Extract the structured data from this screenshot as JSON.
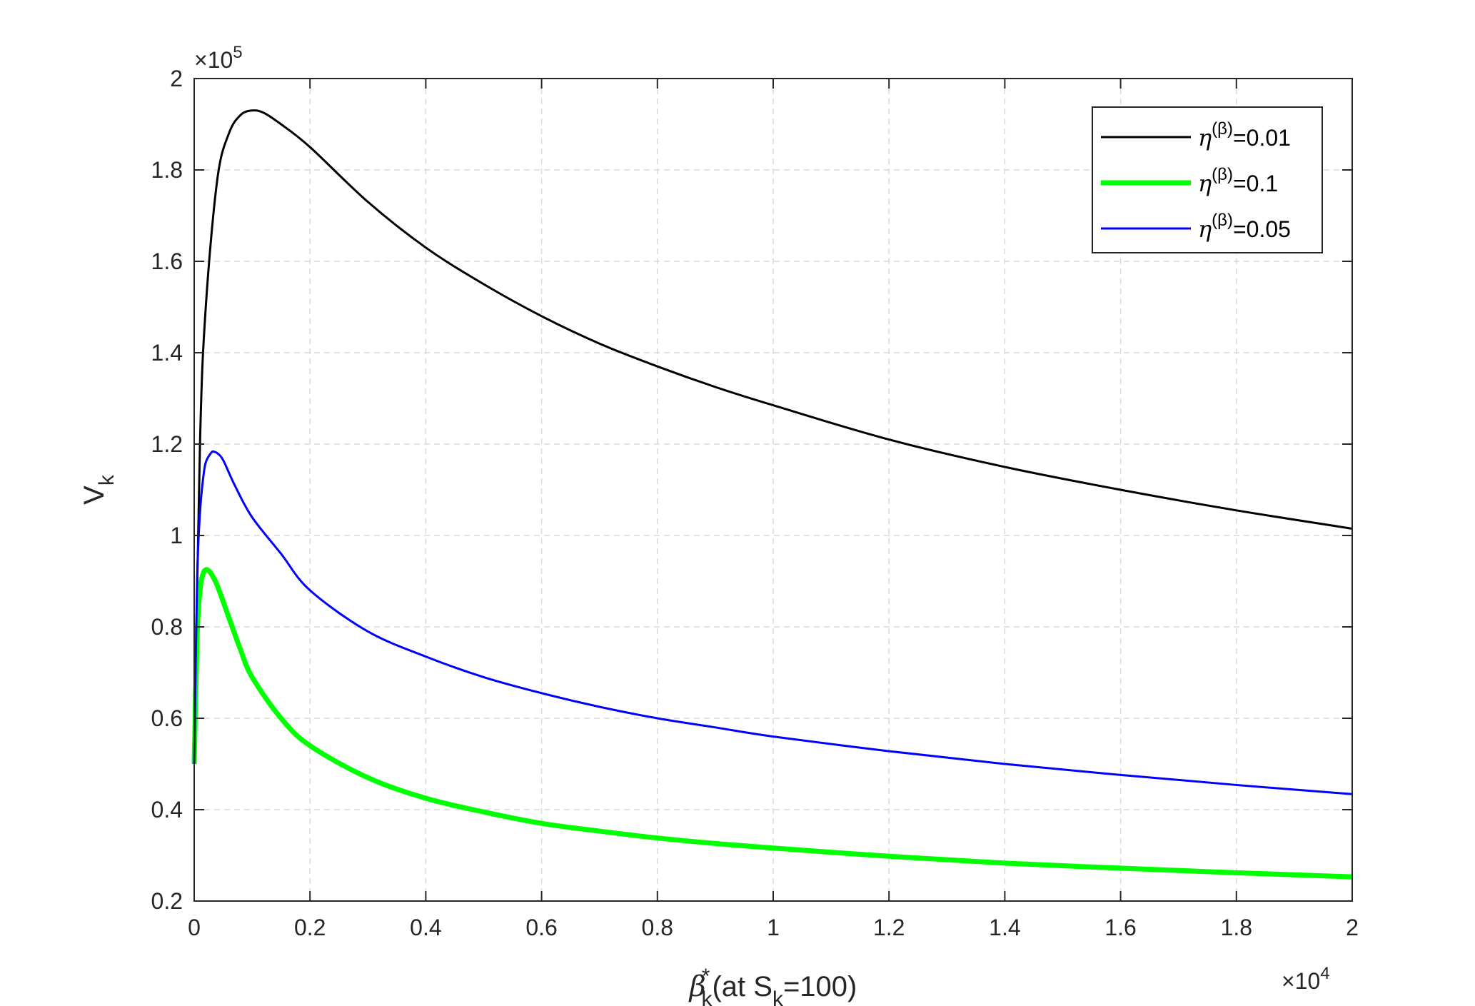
{
  "chart_data": {
    "type": "line",
    "xlabel": {
      "main": "β",
      "sub": "k",
      "sup": "*",
      "rest_open": "(at S",
      "rest_sub": "k",
      "rest_close": "=100)"
    },
    "ylabel": {
      "main": "V",
      "sub": "k"
    },
    "x_exponent": {
      "prefix": "×10",
      "power": "4"
    },
    "y_exponent": {
      "prefix": "×10",
      "power": "5"
    },
    "xlim": [
      0,
      20000
    ],
    "ylim": [
      20000,
      200000
    ],
    "xticks": [
      0,
      2000,
      4000,
      6000,
      8000,
      10000,
      12000,
      14000,
      16000,
      18000,
      20000
    ],
    "xtick_labels": [
      "0",
      "0.2",
      "0.4",
      "0.6",
      "0.8",
      "1",
      "1.2",
      "1.4",
      "1.6",
      "1.8",
      "2"
    ],
    "yticks": [
      20000,
      40000,
      60000,
      80000,
      100000,
      120000,
      140000,
      160000,
      180000,
      200000
    ],
    "ytick_labels": [
      "0.2",
      "0.4",
      "0.6",
      "0.8",
      "1",
      "1.2",
      "1.4",
      "1.6",
      "1.8",
      "2"
    ],
    "grid": true,
    "legend_position": "top-right",
    "series": [
      {
        "legend_symbol": "η",
        "legend_sup": "(β)",
        "legend_value": "=0.01",
        "color": "#000000",
        "line_width": 3,
        "x": [
          0,
          100,
          200,
          400,
          600,
          800,
          1000,
          1200,
          1500,
          2000,
          3000,
          4000,
          5000,
          6000,
          7000,
          8000,
          9000,
          10000,
          12000,
          14000,
          16000,
          18000,
          20000
        ],
        "y": [
          50000,
          120000,
          150000,
          178000,
          188000,
          192000,
          193000,
          192500,
          190000,
          185000,
          173000,
          163000,
          155000,
          148000,
          142000,
          137000,
          132500,
          128500,
          121000,
          115000,
          110000,
          105500,
          101500
        ]
      },
      {
        "legend_symbol": "η",
        "legend_sup": "(β)",
        "legend_value": "=0.1",
        "color": "#00ff00",
        "line_width": 7,
        "x": [
          0,
          50,
          100,
          150,
          200,
          250,
          300,
          400,
          600,
          800,
          1000,
          1500,
          2000,
          3000,
          4000,
          5000,
          6000,
          7000,
          8000,
          9000,
          10000,
          12000,
          14000,
          16000,
          18000,
          20000
        ],
        "y": [
          50000,
          78000,
          88000,
          91500,
          92500,
          92300,
          91500,
          89000,
          82000,
          75000,
          69000,
          60000,
          54000,
          47000,
          42500,
          39500,
          37000,
          35300,
          33800,
          32600,
          31600,
          29800,
          28300,
          27200,
          26200,
          25300
        ]
      },
      {
        "legend_symbol": "η",
        "legend_sup": "(β)",
        "legend_value": "=0.05",
        "color": "#0000ff",
        "line_width": 3,
        "x": [
          0,
          50,
          100,
          150,
          200,
          300,
          350,
          400,
          500,
          700,
          1000,
          1500,
          2000,
          3000,
          4000,
          5000,
          6000,
          7000,
          8000,
          9000,
          10000,
          12000,
          14000,
          16000,
          18000,
          20000
        ],
        "y": [
          50000,
          90000,
          105000,
          112000,
          116000,
          118200,
          118300,
          118000,
          116500,
          111000,
          104000,
          96000,
          88000,
          79000,
          73500,
          69000,
          65500,
          62500,
          60000,
          58000,
          56000,
          52800,
          50000,
          47600,
          45400,
          43400
        ]
      }
    ]
  }
}
